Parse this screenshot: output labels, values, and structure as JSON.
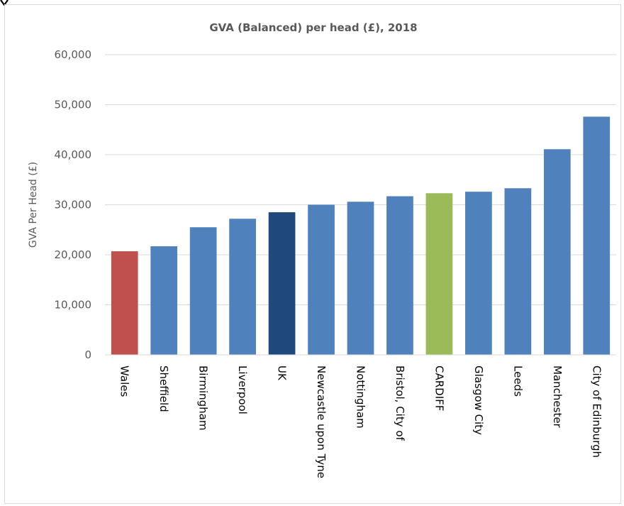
{
  "chart_data": {
    "type": "bar",
    "title": "GVA (Balanced) per head (£), 2018",
    "xlabel": "",
    "ylabel": "GVA Per Head (£)",
    "ylim": [
      0,
      60000
    ],
    "yticks": [
      0,
      10000,
      20000,
      30000,
      40000,
      50000,
      60000
    ],
    "ytick_labels": [
      "0",
      "10,000",
      "20,000",
      "30,000",
      "40,000",
      "50,000",
      "60,000"
    ],
    "grid": true,
    "legend": "none",
    "categories": [
      "Wales",
      "Sheffield",
      "Birmingham",
      "Liverpool",
      "UK",
      "Newcastle upon Tyne",
      "Nottingham",
      "Bristol, City of",
      "CARDIFF",
      "Glasgow City",
      "Leeds",
      "Manchester",
      "City of Edinburgh"
    ],
    "values": [
      20700,
      21700,
      25500,
      27200,
      28500,
      30000,
      30600,
      31700,
      32300,
      32600,
      33300,
      41100,
      47600
    ],
    "bar_colors": [
      "#c0504d",
      "#4f81bd",
      "#4f81bd",
      "#4f81bd",
      "#1f497d",
      "#4f81bd",
      "#4f81bd",
      "#4f81bd",
      "#9bbb59",
      "#4f81bd",
      "#4f81bd",
      "#4f81bd",
      "#4f81bd"
    ]
  },
  "colors": {
    "default_bar": "#4f81bd",
    "wales_bar": "#c0504d",
    "uk_bar": "#1f497d",
    "cardiff_bar": "#9bbb59",
    "gridline": "#d9d9d9",
    "text": "#595959"
  }
}
